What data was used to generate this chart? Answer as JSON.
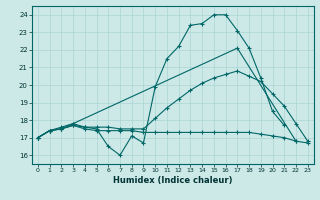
{
  "xlabel": "Humidex (Indice chaleur)",
  "xlim": [
    -0.5,
    23.5
  ],
  "ylim": [
    15.5,
    24.5
  ],
  "bg_color": "#cce9e8",
  "line_color": "#006666",
  "grid_color": "#aad4d3",
  "line1_x": [
    0,
    1,
    2,
    3,
    4,
    5,
    6,
    7,
    8,
    9,
    10,
    11,
    12,
    13,
    14,
    15,
    16,
    17,
    18,
    19,
    20,
    21
  ],
  "line1_y": [
    17.0,
    17.4,
    17.5,
    17.7,
    17.6,
    17.5,
    16.5,
    16.0,
    17.1,
    16.7,
    19.9,
    21.5,
    22.2,
    23.4,
    23.5,
    24.0,
    24.0,
    23.1,
    22.1,
    20.4,
    18.5,
    17.7
  ],
  "line2_x": [
    0,
    1,
    2,
    3,
    4,
    5,
    6,
    7,
    8,
    9,
    10,
    11,
    12,
    13,
    14,
    15,
    16,
    17,
    18,
    19,
    20,
    21,
    22,
    23
  ],
  "line2_y": [
    17.0,
    17.4,
    17.5,
    17.7,
    17.5,
    17.4,
    17.4,
    17.4,
    17.4,
    17.3,
    17.3,
    17.3,
    17.3,
    17.3,
    17.3,
    17.3,
    17.3,
    17.3,
    17.3,
    17.2,
    17.1,
    17.0,
    16.8,
    16.7
  ],
  "line3_x": [
    0,
    1,
    2,
    3,
    4,
    5,
    6,
    7,
    8,
    9,
    10,
    11,
    12,
    13,
    14,
    15,
    16,
    17,
    18,
    19,
    20,
    21,
    22,
    23
  ],
  "line3_y": [
    17.0,
    17.4,
    17.6,
    17.8,
    17.6,
    17.6,
    17.6,
    17.5,
    17.5,
    17.5,
    18.1,
    18.7,
    19.2,
    19.7,
    20.1,
    20.4,
    20.6,
    20.8,
    20.5,
    20.2,
    19.5,
    18.8,
    17.8,
    16.8
  ],
  "line4_x": [
    0,
    1,
    2,
    3,
    17,
    22
  ],
  "line4_y": [
    17.0,
    17.4,
    17.5,
    17.8,
    22.1,
    16.8
  ]
}
